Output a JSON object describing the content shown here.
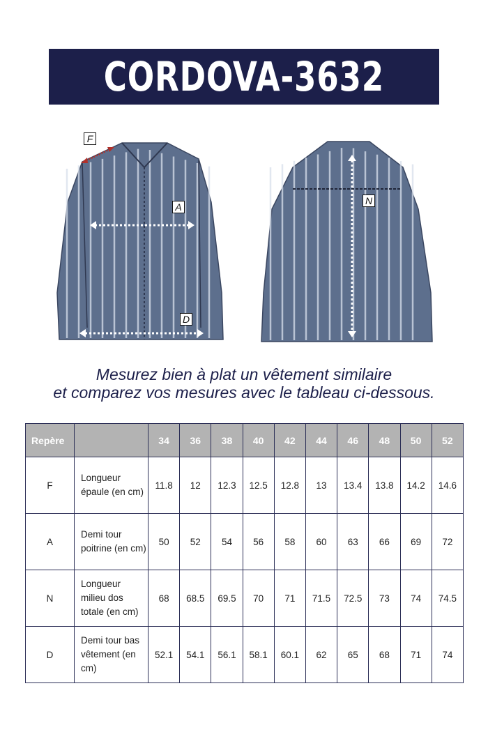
{
  "title": "CORDOVA-3632",
  "labels": {
    "F": "F",
    "A": "A",
    "D": "D",
    "N": "N"
  },
  "colors": {
    "banner": "#1c1f4a",
    "shirt": "#5d6f8d",
    "arrow_f": "#b0312b",
    "header": "#b3b3b3"
  },
  "subtitle": {
    "line1": "Mesurez bien à plat un vêtement similaire",
    "line2": "et comparez vos mesures avec le tableau ci-dessous."
  },
  "table": {
    "header": {
      "marker": "Repère",
      "desc": "",
      "sizes": [
        "34",
        "36",
        "38",
        "40",
        "42",
        "44",
        "46",
        "48",
        "50",
        "52"
      ]
    },
    "rows": [
      {
        "marker": "F",
        "desc": "Longueur épaule (en cm)",
        "values": [
          "11.8",
          "12",
          "12.3",
          "12.5",
          "12.8",
          "13",
          "13.4",
          "13.8",
          "14.2",
          "14.6"
        ]
      },
      {
        "marker": "A",
        "desc": "Demi tour poitrine (en cm)",
        "values": [
          "50",
          "52",
          "54",
          "56",
          "58",
          "60",
          "63",
          "66",
          "69",
          "72"
        ]
      },
      {
        "marker": "N",
        "desc": "Longueur milieu dos totale (en cm)",
        "values": [
          "68",
          "68.5",
          "69.5",
          "70",
          "71",
          "71.5",
          "72.5",
          "73",
          "74",
          "74.5"
        ]
      },
      {
        "marker": "D",
        "desc": "Demi tour bas vêtement (en cm)",
        "values": [
          "52.1",
          "54.1",
          "56.1",
          "58.1",
          "60.1",
          "62",
          "65",
          "68",
          "71",
          "74"
        ]
      }
    ]
  }
}
